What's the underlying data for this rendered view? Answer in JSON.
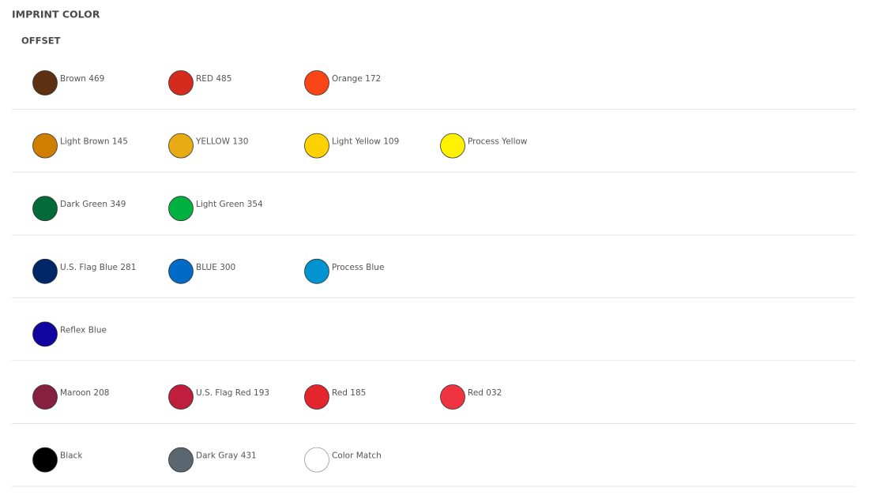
{
  "header": {
    "title": "IMPRINT COLOR",
    "subtitle": "OFFSET"
  },
  "rows": [
    [
      {
        "label": "Brown 469",
        "color": "#5c3011"
      },
      {
        "label": "RED 485",
        "color": "#d52b1e"
      },
      {
        "label": "Orange 172",
        "color": "#fa4616"
      }
    ],
    [
      {
        "label": "Light Brown 145",
        "color": "#cf7f00"
      },
      {
        "label": "YELLOW 130",
        "color": "#e9ab14"
      },
      {
        "label": "Light Yellow 109",
        "color": "#ffd100"
      },
      {
        "label": "Process Yellow",
        "color": "#fff200"
      }
    ],
    [
      {
        "label": "Dark Green 349",
        "color": "#046a38"
      },
      {
        "label": "Light Green 354",
        "color": "#00b140"
      }
    ],
    [
      {
        "label": "U.S. Flag Blue 281",
        "color": "#002868"
      },
      {
        "label": "BLUE 300",
        "color": "#006bc6"
      },
      {
        "label": "Process Blue",
        "color": "#0093d0"
      }
    ],
    [
      {
        "label": "Reflex Blue",
        "color": "#10069f"
      }
    ],
    [
      {
        "label": "Maroon 208",
        "color": "#862041"
      },
      {
        "label": "U.S. Flag Red 193",
        "color": "#bf1e3c"
      },
      {
        "label": "Red 185",
        "color": "#e4252e"
      },
      {
        "label": "Red 032",
        "color": "#ef3340"
      }
    ],
    [
      {
        "label": "Black",
        "color": "#000000"
      },
      {
        "label": "Dark Gray 431",
        "color": "#5b6770"
      },
      {
        "label": "Color Match",
        "color": "#ffffff"
      }
    ]
  ]
}
